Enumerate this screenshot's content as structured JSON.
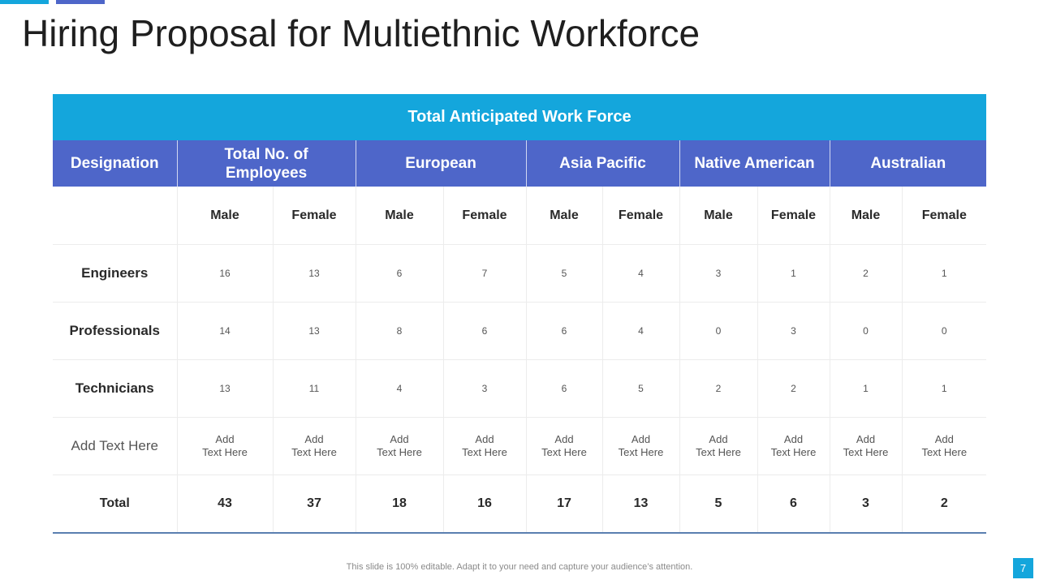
{
  "colors": {
    "accent_cyan": "#14a6dc",
    "accent_indigo": "#4e66c9",
    "top_header_bg": "#14a6dc",
    "column_header_bg": "#4e66c9"
  },
  "slide": {
    "title": "Hiring Proposal for Multiethnic Workforce",
    "footer": "This slide is 100% editable. Adapt it to your need and capture your audience’s attention.",
    "page_number": "7"
  },
  "table": {
    "banner": "Total Anticipated Work Force",
    "headers": {
      "designation": "Designation",
      "total_employees": "Total No. of Employees",
      "european": "European",
      "asia_pacific": "Asia Pacific",
      "native_american": "Native American",
      "australian": "Australian"
    },
    "gender": {
      "male": "Male",
      "female": "Female"
    },
    "rows": [
      {
        "designation": "Engineers",
        "values": [
          "16",
          "13",
          "6",
          "7",
          "5",
          "4",
          "3",
          "1",
          "2",
          "1"
        ]
      },
      {
        "designation": "Professionals",
        "values": [
          "14",
          "13",
          "8",
          "6",
          "6",
          "4",
          "0",
          "3",
          "0",
          "0"
        ]
      },
      {
        "designation": "Technicians",
        "values": [
          "13",
          "11",
          "4",
          "3",
          "6",
          "5",
          "2",
          "2",
          "1",
          "1"
        ]
      }
    ],
    "placeholder_row": {
      "designation": "Add Text Here",
      "cell_line1": "Add",
      "cell_line2": "Text Here"
    },
    "total_row": {
      "label": "Total",
      "values": [
        "43",
        "37",
        "18",
        "16",
        "17",
        "13",
        "5",
        "6",
        "3",
        "2"
      ]
    }
  }
}
